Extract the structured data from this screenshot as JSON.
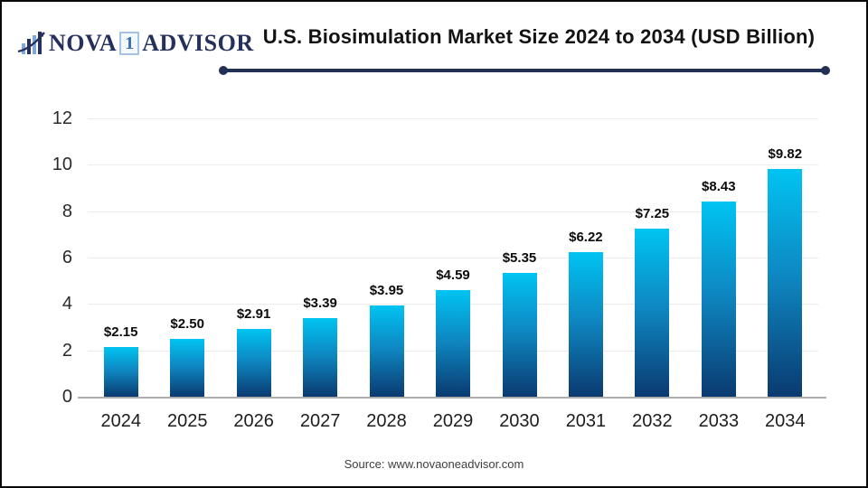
{
  "header": {
    "logo": {
      "icon": "bar-growth-icon",
      "brand_prefix": "NOVA",
      "brand_digit": "1",
      "brand_suffix": "ADVISOR"
    },
    "title": "U.S. Biosimulation Market Size 2024 to 2034 (USD Billion)"
  },
  "chart_data": {
    "type": "bar",
    "title": "U.S. Biosimulation Market Size 2024 to 2034 (USD Billion)",
    "categories": [
      "2024",
      "2025",
      "2026",
      "2027",
      "2028",
      "2029",
      "2030",
      "2031",
      "2032",
      "2033",
      "2034"
    ],
    "values": [
      2.15,
      2.5,
      2.91,
      3.39,
      3.95,
      4.59,
      5.35,
      6.22,
      7.25,
      8.43,
      9.82
    ],
    "data_labels": [
      "$2.15",
      "$2.50",
      "$2.91",
      "$3.39",
      "$3.95",
      "$4.59",
      "$5.35",
      "$6.22",
      "$7.25",
      "$8.43",
      "$9.82"
    ],
    "xlabel": "",
    "ylabel": "",
    "ylim": [
      0,
      12
    ],
    "yticks": [
      0,
      2,
      4,
      6,
      8,
      10,
      12
    ],
    "grid": true,
    "legend": "none"
  },
  "colors": {
    "accent_navy": "#223055",
    "bar_gradient_top": "#00c4f2",
    "bar_gradient_mid": "#0e86c0",
    "bar_gradient_bottom": "#0a3a70",
    "gridline": "#ebebeb",
    "baseline": "#aeaeae"
  },
  "footer": {
    "source_label": "Source: www.novaoneadvisor.com"
  }
}
